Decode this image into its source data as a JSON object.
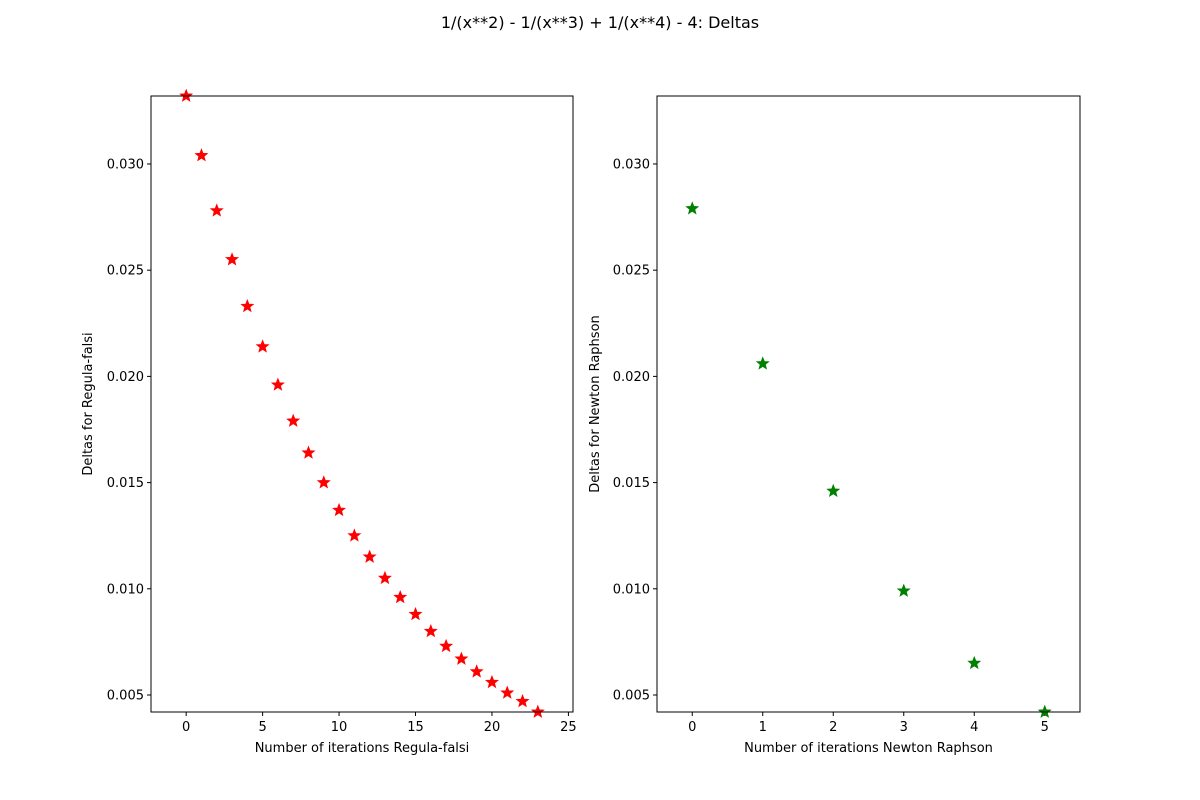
{
  "figure": {
    "title": "1/(x**2) - 1/(x**3) + 1/(x**4) - 4: Deltas"
  },
  "chart_data": [
    {
      "type": "scatter",
      "marker": "star",
      "color": "#ff0000",
      "xlabel": "Number of iterations Regula-falsi",
      "ylabel": "Deltas for Regula-falsi",
      "xlim": [
        -2.3,
        25.3
      ],
      "ylim": [
        0.0042,
        0.0332
      ],
      "xticks": [
        0,
        5,
        10,
        15,
        20,
        25
      ],
      "xtick_labels": [
        "0",
        "5",
        "10",
        "15",
        "20",
        "25"
      ],
      "yticks": [
        0.005,
        0.01,
        0.015,
        0.02,
        0.025,
        0.03
      ],
      "ytick_labels": [
        "0.005",
        "0.010",
        "0.015",
        "0.020",
        "0.025",
        "0.030"
      ],
      "grid": false,
      "x": [
        0,
        1,
        2,
        3,
        4,
        5,
        6,
        7,
        8,
        9,
        10,
        11,
        12,
        13,
        14,
        15,
        16,
        17,
        18,
        19,
        20,
        21,
        22,
        23
      ],
      "y": [
        0.0332,
        0.0304,
        0.0278,
        0.0255,
        0.0233,
        0.0214,
        0.0196,
        0.0179,
        0.0164,
        0.015,
        0.0137,
        0.0125,
        0.0115,
        0.0105,
        0.0096,
        0.0088,
        0.008,
        0.0073,
        0.0067,
        0.0061,
        0.0056,
        0.0051,
        0.0047,
        0.0042
      ]
    },
    {
      "type": "scatter",
      "marker": "star",
      "color": "#008000",
      "xlabel": "Number of iterations Newton Raphson",
      "ylabel": "Deltas for Newton Raphson",
      "xlim": [
        -0.5,
        5.5
      ],
      "ylim": [
        0.0042,
        0.0332
      ],
      "xticks": [
        0,
        1,
        2,
        3,
        4,
        5
      ],
      "xtick_labels": [
        "0",
        "1",
        "2",
        "3",
        "4",
        "5"
      ],
      "yticks": [
        0.005,
        0.01,
        0.015,
        0.02,
        0.025,
        0.03
      ],
      "ytick_labels": [
        "0.005",
        "0.010",
        "0.015",
        "0.020",
        "0.025",
        "0.030"
      ],
      "grid": false,
      "x": [
        0,
        1,
        2,
        3,
        4,
        5
      ],
      "y": [
        0.0279,
        0.0206,
        0.0146,
        0.0099,
        0.0065,
        0.0042
      ]
    }
  ]
}
